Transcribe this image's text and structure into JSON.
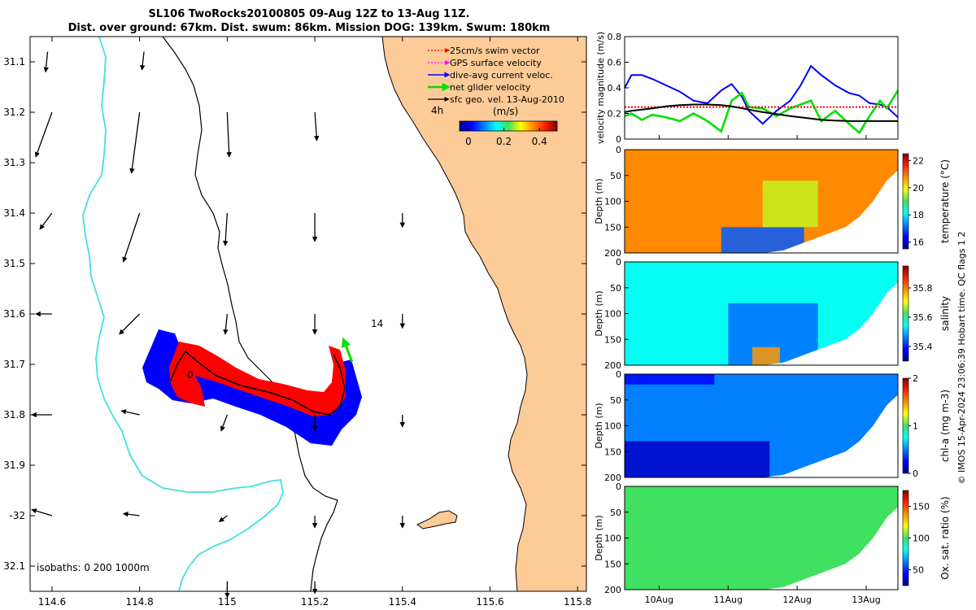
{
  "title": {
    "line1": "SL106 TwoRocks20100805 09-Aug 12Z to 13-Aug 11Z.",
    "line2": "Dist. over ground: 67km. Dist. swum: 86km. Mission DOG: 139km. Swum: 180km"
  },
  "colors": {
    "land": "#FCCB97",
    "coast_isobath": "#000000",
    "shallow_isobath": "#40E0E0",
    "swim_vector": "#FF0000",
    "gps_velocity": "#FF00FF",
    "dive_current": "#0000FF",
    "net_velocity": "#00E000",
    "geo_velocity": "#000000"
  },
  "chart_data": [
    {
      "type": "map",
      "name": "glider track map",
      "xlim": [
        114.55,
        115.82
      ],
      "ylim": [
        -32.15,
        -31.05
      ],
      "xticks": [
        114.6,
        114.8,
        115,
        115.2,
        115.4,
        115.6,
        115.8
      ],
      "xtick_labels": [
        "114.6",
        "114.8",
        "115",
        "115.2",
        "115.4",
        "115.6",
        "115.8"
      ],
      "yticks": [
        -31.1,
        -31.2,
        -31.3,
        -31.4,
        -31.5,
        -31.6,
        -31.7,
        -31.8,
        -31.9,
        -32,
        -32.1
      ],
      "ytick_labels": [
        "31.1",
        "31.2",
        "31.3",
        "31.4",
        "31.5",
        "31.6",
        "31.7",
        "31.8",
        "31.9",
        "-32",
        "32.1"
      ],
      "legend": [
        {
          "label": "25cm/s swim vector",
          "color": "#FF0000",
          "style": "dotted-arrow"
        },
        {
          "label": "GPS surface velocity",
          "color": "#FF00FF",
          "style": "dotted-arrow"
        },
        {
          "label": "dive-avg current veloc.",
          "color": "#0000FF",
          "style": "arrow"
        },
        {
          "label": "net glider velocity",
          "color": "#00E000",
          "style": "thick-arrow"
        },
        {
          "label": "sfc geo. vel. 13-Aug-2010",
          "color": "#000000",
          "style": "arrow"
        }
      ],
      "legend_note": "4h",
      "colorbar": {
        "label": "(m/s)",
        "ticks": [
          0,
          0.2,
          0.4
        ],
        "tick_labels": [
          "0",
          "0.2",
          "0.4"
        ],
        "range": [
          -0.05,
          0.5
        ]
      },
      "isobath_label": "isobaths: 0   200  1000m",
      "annotations": [
        {
          "text": "14",
          "lon": 115.33,
          "lat": -31.645
        },
        {
          "text": "0",
          "lon": 114.93,
          "lat": -31.74
        }
      ],
      "track": [
        [
          114.97,
          -31.69
        ],
        [
          115.0,
          -31.71
        ],
        [
          115.04,
          -31.735
        ],
        [
          115.08,
          -31.755
        ],
        [
          115.12,
          -31.77
        ],
        [
          115.15,
          -31.775
        ],
        [
          115.18,
          -31.785
        ],
        [
          115.22,
          -31.805
        ],
        [
          115.25,
          -31.805
        ],
        [
          115.28,
          -31.78
        ],
        [
          115.295,
          -31.74
        ],
        [
          115.29,
          -31.705
        ],
        [
          115.28,
          -31.695
        ]
      ],
      "net_velocity_arrow": {
        "from": [
          115.285,
          -31.695
        ],
        "to": [
          115.265,
          -31.65
        ]
      },
      "geo_vectors": [
        {
          "lon": 114.59,
          "lat": -31.08,
          "u": -0.005,
          "v": -0.05
        },
        {
          "lon": 114.81,
          "lat": -31.08,
          "u": -0.005,
          "v": -0.045
        },
        {
          "lon": 114.6,
          "lat": -31.2,
          "u": -0.04,
          "v": -0.11
        },
        {
          "lon": 114.8,
          "lat": -31.2,
          "u": -0.02,
          "v": -0.15
        },
        {
          "lon": 115.0,
          "lat": -31.2,
          "u": 0.005,
          "v": -0.11
        },
        {
          "lon": 115.2,
          "lat": -31.2,
          "u": 0.005,
          "v": -0.07
        },
        {
          "lon": 114.6,
          "lat": -31.4,
          "u": -0.03,
          "v": -0.04
        },
        {
          "lon": 114.8,
          "lat": -31.4,
          "u": -0.04,
          "v": -0.12
        },
        {
          "lon": 115.0,
          "lat": -31.4,
          "u": -0.005,
          "v": -0.08
        },
        {
          "lon": 115.2,
          "lat": -31.4,
          "u": 0.0,
          "v": -0.07
        },
        {
          "lon": 115.4,
          "lat": -31.4,
          "u": 0.0,
          "v": -0.035
        },
        {
          "lon": 114.6,
          "lat": -31.6,
          "u": -0.04,
          "v": 0.0
        },
        {
          "lon": 114.8,
          "lat": -31.6,
          "u": -0.05,
          "v": -0.05
        },
        {
          "lon": 115.0,
          "lat": -31.6,
          "u": -0.005,
          "v": -0.05
        },
        {
          "lon": 115.2,
          "lat": -31.6,
          "u": 0.0,
          "v": -0.05
        },
        {
          "lon": 115.4,
          "lat": -31.6,
          "u": 0.0,
          "v": -0.035
        },
        {
          "lon": 114.6,
          "lat": -31.8,
          "u": -0.05,
          "v": 0.0
        },
        {
          "lon": 114.8,
          "lat": -31.8,
          "u": -0.045,
          "v": 0.01
        },
        {
          "lon": 115.0,
          "lat": -31.8,
          "u": -0.015,
          "v": -0.04
        },
        {
          "lon": 115.2,
          "lat": -31.8,
          "u": 0.0,
          "v": -0.04
        },
        {
          "lon": 115.4,
          "lat": -31.8,
          "u": 0.0,
          "v": -0.03
        },
        {
          "lon": 114.6,
          "lat": -32.0,
          "u": -0.05,
          "v": 0.015
        },
        {
          "lon": 114.8,
          "lat": -32.0,
          "u": -0.04,
          "v": 0.005
        },
        {
          "lon": 115.0,
          "lat": -32.0,
          "u": -0.02,
          "v": -0.015
        },
        {
          "lon": 115.2,
          "lat": -32.0,
          "u": 0.0,
          "v": -0.03
        },
        {
          "lon": 115.4,
          "lat": -32.0,
          "u": 0.0,
          "v": -0.03
        },
        {
          "lon": 115.0,
          "lat": -32.13,
          "u": 0.0,
          "v": -0.04
        },
        {
          "lon": 115.2,
          "lat": -32.13,
          "u": 0.0,
          "v": -0.03
        }
      ]
    },
    {
      "type": "line",
      "name": "velocity magnitude",
      "ylabel": "velocity magnitude (m/s)",
      "ylim": [
        0,
        0.8
      ],
      "yticks": [
        0,
        0.2,
        0.4,
        0.6,
        0.8
      ],
      "xlim": [
        9.5,
        13.46
      ],
      "x": [
        9.5,
        9.6,
        9.75,
        9.9,
        10.1,
        10.3,
        10.5,
        10.7,
        10.9,
        11.05,
        11.2,
        11.3,
        11.5,
        11.7,
        11.9,
        12.05,
        12.2,
        12.35,
        12.55,
        12.75,
        12.9,
        13.05,
        13.2,
        13.3,
        13.46
      ],
      "series": [
        {
          "name": "dive-avg current veloc.",
          "color": "#0000FF",
          "values": [
            0.4,
            0.5,
            0.5,
            0.47,
            0.42,
            0.37,
            0.3,
            0.28,
            0.38,
            0.43,
            0.33,
            0.22,
            0.12,
            0.22,
            0.3,
            0.42,
            0.57,
            0.5,
            0.42,
            0.36,
            0.34,
            0.28,
            0.27,
            0.25,
            0.17
          ]
        },
        {
          "name": "net glider velocity",
          "color": "#00E000",
          "values": [
            0.18,
            0.2,
            0.15,
            0.19,
            0.17,
            0.14,
            0.2,
            0.14,
            0.06,
            0.3,
            0.36,
            0.25,
            0.24,
            0.18,
            0.24,
            0.27,
            0.3,
            0.14,
            0.22,
            0.12,
            0.05,
            0.18,
            0.3,
            0.24,
            0.38
          ]
        },
        {
          "name": "25cm/s swim vector",
          "color": "#FF0000",
          "style": "dotted",
          "values": [
            0.25,
            0.25,
            0.25,
            0.25,
            0.25,
            0.25,
            0.25,
            0.25,
            0.25,
            0.25,
            0.25,
            0.25,
            0.25,
            0.25,
            0.25,
            0.25,
            0.25,
            0.25,
            0.25,
            0.25,
            0.25,
            0.25,
            0.25,
            0.25,
            0.25
          ]
        },
        {
          "name": "sfc geo. vel.",
          "color": "#000000",
          "values": [
            0.21,
            0.22,
            0.23,
            0.24,
            0.255,
            0.265,
            0.27,
            0.27,
            0.265,
            0.255,
            0.24,
            0.23,
            0.21,
            0.195,
            0.18,
            0.17,
            0.16,
            0.15,
            0.145,
            0.14,
            0.14,
            0.14,
            0.14,
            0.14,
            0.14
          ]
        }
      ]
    },
    {
      "type": "heatmap",
      "name": "temperature section",
      "ylabel": "Depth (m)",
      "colorbar_label": "temperature (°C)",
      "clim": [
        15.5,
        22.5
      ],
      "colorbar_ticks": [
        16,
        18,
        20,
        22
      ],
      "colorbar_tick_labels": [
        "16",
        "18",
        "20",
        "22"
      ],
      "yticks": [
        0,
        50,
        100,
        150,
        200
      ],
      "ytick_labels": [
        "0",
        "50",
        "100",
        "150",
        "200"
      ],
      "background_value": 20.8,
      "features": [
        {
          "desc": "cold bottom water",
          "x": [
            10.9,
            12.1
          ],
          "depth": [
            150,
            200
          ],
          "value": 17.0
        },
        {
          "desc": "mid-depth cooling",
          "x": [
            11.5,
            12.3
          ],
          "depth": [
            60,
            150
          ],
          "value": 19.6
        }
      ]
    },
    {
      "type": "heatmap",
      "name": "salinity section",
      "ylabel": "Depth (m)",
      "colorbar_label": "salinity",
      "clim": [
        35.3,
        35.95
      ],
      "colorbar_ticks": [
        35.4,
        35.6,
        35.8
      ],
      "colorbar_tick_labels": [
        "35.4",
        "35.6",
        "35.8"
      ],
      "background_value": 35.55,
      "features": [
        {
          "desc": "fresher water",
          "x": [
            11.0,
            12.3
          ],
          "depth": [
            80,
            200
          ],
          "value": 35.45
        },
        {
          "desc": "salty bottom patch",
          "x": [
            11.35,
            11.75
          ],
          "depth": [
            165,
            200
          ],
          "value": 35.78
        }
      ]
    },
    {
      "type": "heatmap",
      "name": "chlorophyll section",
      "ylabel": "Depth (m)",
      "colorbar_label": "chl-a (mg m-3)",
      "clim": [
        0,
        2
      ],
      "colorbar_ticks": [
        0,
        1,
        2
      ],
      "colorbar_tick_labels": [
        "0",
        "1",
        "2"
      ],
      "background_value": 0.5,
      "features": [
        {
          "desc": "low chl deep water",
          "x": [
            9.5,
            11.6
          ],
          "depth": [
            130,
            200
          ],
          "value": 0.12
        },
        {
          "desc": "surface low chl",
          "x": [
            9.5,
            10.8
          ],
          "depth": [
            0,
            20
          ],
          "value": 0.25
        }
      ]
    },
    {
      "type": "heatmap",
      "name": "oxygen saturation section",
      "ylabel": "Depth (m)",
      "colorbar_label": "Ox. sat. ratio (%)",
      "clim": [
        25,
        175
      ],
      "colorbar_ticks": [
        50,
        100,
        150
      ],
      "colorbar_tick_labels": [
        "50",
        "100",
        "150"
      ],
      "background_value": 100,
      "xticks": [
        10,
        11,
        12,
        13
      ],
      "xtick_labels": [
        "10Aug",
        "11Aug",
        "12Aug",
        "13Aug"
      ],
      "features": []
    }
  ],
  "credit": "© IMOS 15-Apr-2024 23:06:39 Hobart time. QC flags 1  2"
}
